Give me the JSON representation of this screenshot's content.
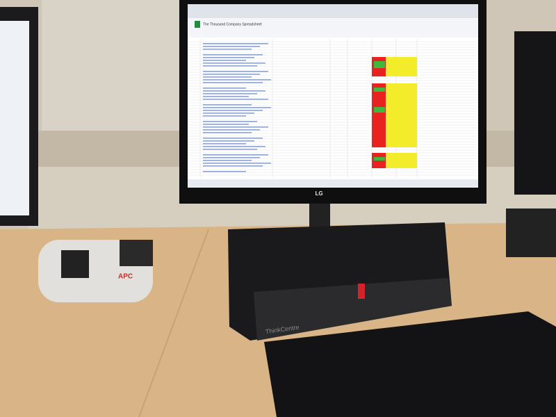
{
  "monitor": {
    "brand": "LG",
    "document_title": "The Thousand Company Spreadsheet"
  },
  "computer": {
    "brand": "ThinkCentre"
  },
  "power_strip": {
    "brand": "APC"
  }
}
